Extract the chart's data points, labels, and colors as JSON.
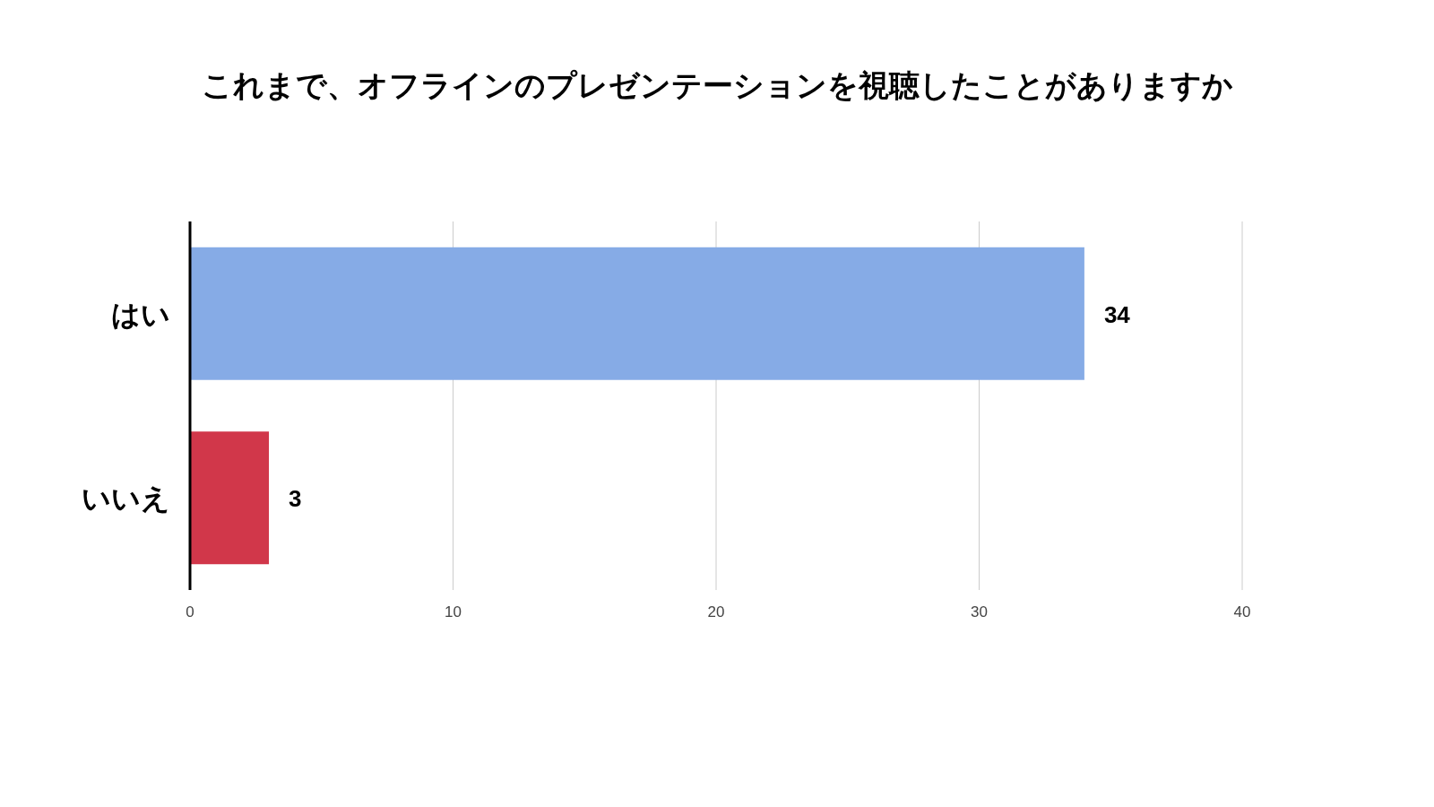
{
  "chart_data": {
    "type": "bar",
    "orientation": "horizontal",
    "title": "これまで、オフラインのプレゼンテーションを視聴したことがありますか",
    "categories": [
      "はい",
      "いいえ"
    ],
    "values": [
      34,
      3
    ],
    "colors": [
      "#86abe6",
      "#d1374a"
    ],
    "xlim": [
      0,
      40
    ],
    "xticks": [
      0,
      10,
      20,
      30,
      40
    ],
    "grid": "x",
    "data_labels": true
  }
}
